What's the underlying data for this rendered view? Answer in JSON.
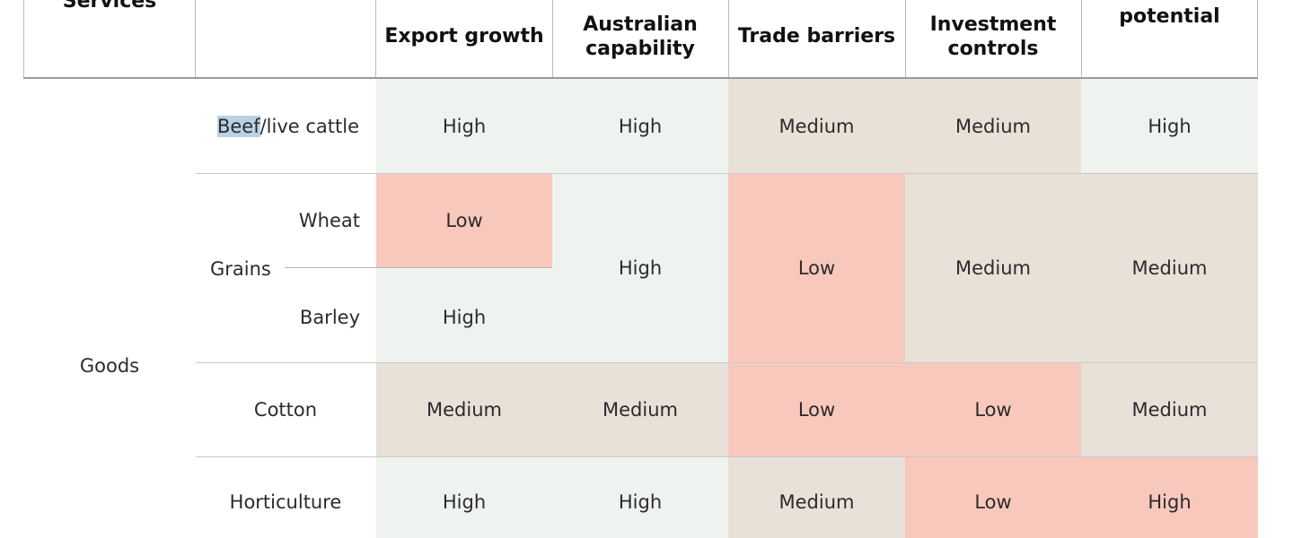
{
  "header": {
    "col1": "Services",
    "col3": "Export growth",
    "col4": "Australian\ncapability",
    "col5": "Trade barriers",
    "col6": "Investment\ncontrols",
    "col7": "potential"
  },
  "rows": {
    "category": "Goods",
    "beef": {
      "label_highlight": "Beef",
      "label_rest": "/live cattle",
      "export_growth": "High",
      "australian_capability": "High",
      "trade_barriers": "Medium",
      "investment_controls": "Medium",
      "potential": "High"
    },
    "grains": {
      "label": "Grains",
      "wheat_label": "Wheat",
      "barley_label": "Barley",
      "wheat_export_growth": "Low",
      "barley_export_growth": "High",
      "australian_capability": "High",
      "trade_barriers": "Low",
      "investment_controls": "Medium",
      "potential": "Medium"
    },
    "cotton": {
      "label": "Cotton",
      "export_growth": "Medium",
      "australian_capability": "Medium",
      "trade_barriers": "Low",
      "investment_controls": "Low",
      "potential": "Medium"
    },
    "horticulture": {
      "label": "Horticulture",
      "export_growth": "High",
      "australian_capability": "High",
      "trade_barriers": "Medium",
      "investment_controls": "Low",
      "potential": "High"
    }
  },
  "colors": {
    "high": "#eff3ef",
    "medium": "#e8e1d7",
    "low": "#f8c8bd",
    "highlight": "#b9d2e6"
  }
}
